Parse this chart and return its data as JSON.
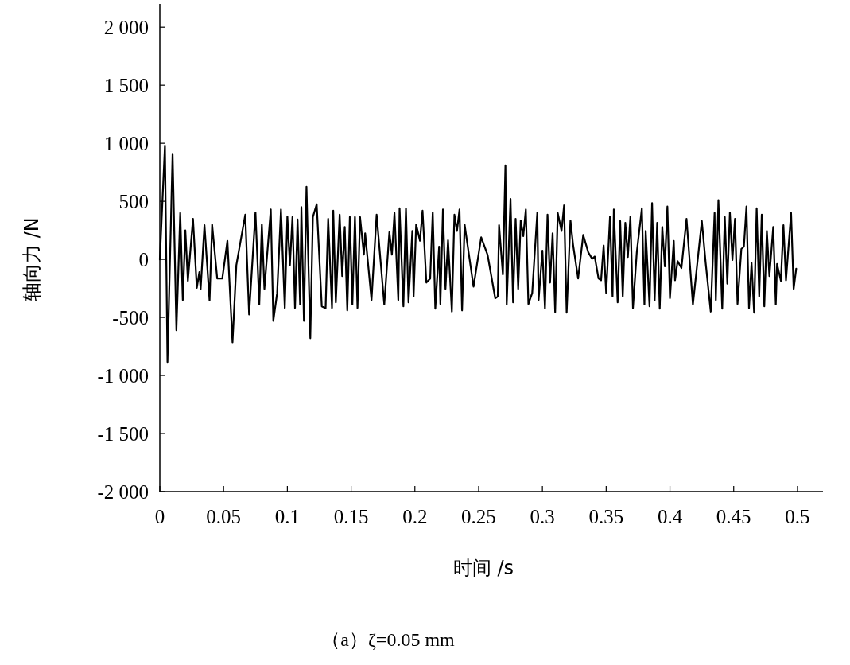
{
  "chart_data": {
    "type": "line",
    "xlabel": "时间 /s",
    "ylabel": "轴向力 /N",
    "annotations": [
      "（a）ζ=0.05 mm"
    ],
    "xlim": [
      0,
      0.52
    ],
    "xticks": [
      0,
      0.05,
      0.1,
      0.15,
      0.2,
      0.25,
      0.3,
      0.35,
      0.4,
      0.45,
      0.5
    ],
    "ylim": [
      -2000,
      2200
    ],
    "yticks": [
      {
        "value": 2000,
        "label": "2 000"
      },
      {
        "value": 1500,
        "label": "1 500"
      },
      {
        "value": 1000,
        "label": "1 000"
      },
      500,
      0,
      -500,
      {
        "value": -1000,
        "label": "-1 000"
      },
      {
        "value": -1500,
        "label": "-1 500"
      },
      {
        "value": -2000,
        "label": "-2 000"
      }
    ],
    "grid": false,
    "marker": "none",
    "line_style": "solid",
    "series": [
      {
        "color": "#000000",
        "x": [
          0,
          0.004,
          0.006,
          0.01,
          0.013,
          0.016,
          0.018,
          0.02,
          0.022,
          0.026,
          0.029,
          0.031,
          0.032,
          0.035,
          0.039,
          0.041,
          0.045,
          0.049,
          0.053,
          0.057,
          0.06,
          0.067,
          0.07,
          0.075,
          0.078,
          0.08,
          0.082,
          0.087,
          0.089,
          0.092,
          0.095,
          0.098,
          0.1,
          0.102,
          0.104,
          0.106,
          0.108,
          0.11,
          0.111,
          0.113,
          0.115,
          0.118,
          0.12,
          0.123,
          0.127,
          0.13,
          0.132,
          0.135,
          0.136,
          0.138,
          0.141,
          0.143,
          0.145,
          0.147,
          0.149,
          0.151,
          0.153,
          0.155,
          0.157,
          0.16,
          0.161,
          0.166,
          0.17,
          0.176,
          0.18,
          0.182,
          0.184,
          0.187,
          0.188,
          0.191,
          0.193,
          0.195,
          0.198,
          0.199,
          0.201,
          0.204,
          0.206,
          0.209,
          0.212,
          0.214,
          0.216,
          0.219,
          0.22,
          0.222,
          0.224,
          0.226,
          0.229,
          0.231,
          0.233,
          0.235,
          0.237,
          0.239,
          0.246,
          0.252,
          0.257,
          0.263,
          0.265,
          0.266,
          0.269,
          0.271,
          0.272,
          0.275,
          0.277,
          0.279,
          0.281,
          0.283,
          0.285,
          0.287,
          0.289,
          0.292,
          0.296,
          0.297,
          0.3,
          0.302,
          0.304,
          0.306,
          0.308,
          0.31,
          0.312,
          0.315,
          0.317,
          0.319,
          0.322,
          0.324,
          0.328,
          0.332,
          0.336,
          0.339,
          0.341,
          0.344,
          0.346,
          0.348,
          0.35,
          0.353,
          0.355,
          0.356,
          0.359,
          0.361,
          0.363,
          0.365,
          0.367,
          0.369,
          0.371,
          0.374,
          0.378,
          0.38,
          0.381,
          0.384,
          0.386,
          0.388,
          0.39,
          0.392,
          0.394,
          0.396,
          0.398,
          0.4,
          0.403,
          0.404,
          0.406,
          0.409,
          0.413,
          0.418,
          0.425,
          0.428,
          0.432,
          0.435,
          0.436,
          0.438,
          0.441,
          0.443,
          0.445,
          0.447,
          0.449,
          0.451,
          0.453,
          0.456,
          0.458,
          0.46,
          0.462,
          0.464,
          0.466,
          0.468,
          0.47,
          0.472,
          0.474,
          0.476,
          0.478,
          0.481,
          0.483,
          0.484,
          0.487,
          0.489,
          0.491,
          0.495,
          0.497,
          0.499
        ],
        "values": [
          0,
          980,
          -885,
          910,
          -610,
          400,
          -350,
          250,
          -185,
          350,
          -245,
          -110,
          -255,
          295,
          -355,
          300,
          -165,
          -165,
          160,
          -715,
          -50,
          385,
          -475,
          405,
          -390,
          300,
          -255,
          430,
          -530,
          -290,
          430,
          -420,
          370,
          -50,
          365,
          -420,
          345,
          -390,
          450,
          -530,
          625,
          -680,
          365,
          475,
          -405,
          -420,
          350,
          -420,
          420,
          -370,
          385,
          -145,
          280,
          -440,
          365,
          -390,
          365,
          -420,
          365,
          40,
          225,
          -350,
          385,
          -390,
          235,
          40,
          400,
          -350,
          440,
          -405,
          440,
          -370,
          245,
          -320,
          300,
          160,
          420,
          -200,
          -165,
          405,
          -425,
          110,
          -385,
          430,
          -255,
          165,
          -450,
          385,
          245,
          430,
          -440,
          300,
          -235,
          190,
          40,
          -335,
          -320,
          295,
          -130,
          810,
          -390,
          520,
          -370,
          350,
          -255,
          335,
          200,
          430,
          -385,
          -290,
          405,
          -350,
          75,
          -425,
          385,
          -200,
          225,
          -455,
          400,
          245,
          465,
          -460,
          335,
          130,
          -165,
          210,
          60,
          5,
          25,
          -165,
          -180,
          120,
          -290,
          370,
          -320,
          430,
          -370,
          330,
          -320,
          315,
          20,
          370,
          -420,
          60,
          440,
          -390,
          245,
          -405,
          485,
          -355,
          315,
          -425,
          280,
          -60,
          455,
          -335,
          160,
          -180,
          -15,
          -75,
          350,
          -390,
          330,
          -30,
          -450,
          400,
          -350,
          510,
          -425,
          365,
          -210,
          405,
          -5,
          350,
          -385,
          90,
          110,
          455,
          -420,
          -30,
          -460,
          440,
          -320,
          385,
          -405,
          245,
          -145,
          280,
          -390,
          -40,
          -185,
          295,
          -180,
          400,
          -255,
          -80
        ]
      }
    ]
  }
}
